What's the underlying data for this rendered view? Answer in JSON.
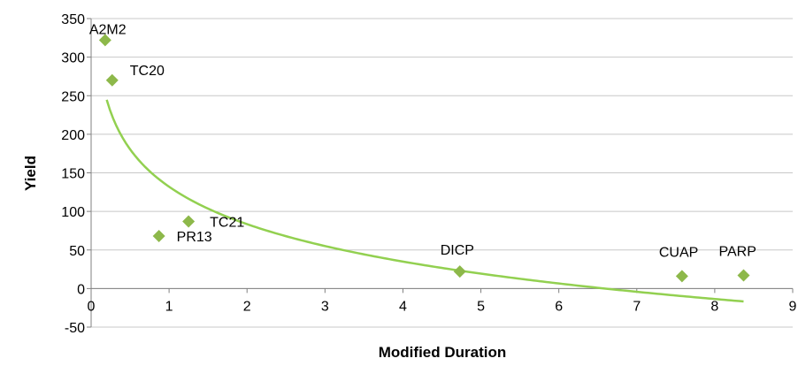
{
  "chart_data": {
    "type": "scatter",
    "xlabel": "Modified Duration",
    "ylabel": "Yield",
    "xlim": [
      0,
      9
    ],
    "ylim": [
      -50,
      350
    ],
    "x_ticks": [
      0,
      1,
      2,
      3,
      4,
      5,
      6,
      7,
      8,
      9
    ],
    "y_ticks": [
      -50,
      0,
      50,
      100,
      150,
      200,
      250,
      300,
      350
    ],
    "grid": "horizontal",
    "marker_color": "#8DB84A",
    "trendline_color": "#92D050",
    "points": [
      {
        "label": "A2M2",
        "x": 0.18,
        "y": 322
      },
      {
        "label": "TC20",
        "x": 0.27,
        "y": 270
      },
      {
        "label": "PR13",
        "x": 0.87,
        "y": 68
      },
      {
        "label": "TC21",
        "x": 1.25,
        "y": 87
      },
      {
        "label": "DICP",
        "x": 4.73,
        "y": 22
      },
      {
        "label": "CUAP",
        "x": 7.58,
        "y": 16
      },
      {
        "label": "PARP",
        "x": 8.37,
        "y": 17
      }
    ],
    "trendline": {
      "type": "logarithmic",
      "x_range": [
        0.2,
        8.37
      ],
      "coef_a": -70,
      "intercept": 132
    }
  }
}
